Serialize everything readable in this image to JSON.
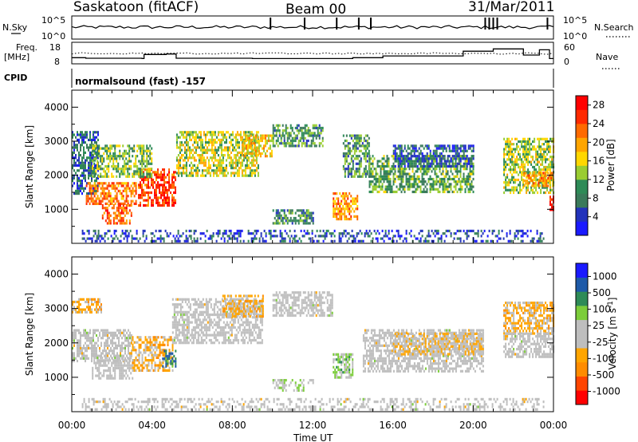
{
  "header": {
    "station": "Saskatoon (fitACF)",
    "beam": "Beam 00",
    "date": "31/Mar/2011"
  },
  "noise_panel": {
    "left_label": "N.Sky",
    "left_ticks": [
      "10^5",
      "10^0"
    ],
    "right_label": "N.Search",
    "right_ticks": [
      "10^5",
      "10^0"
    ]
  },
  "freq_panel": {
    "left_label_line1": "Freq.",
    "left_label_line2": "[MHz]",
    "left_ticks": [
      "18",
      "8"
    ],
    "right_label": "Nave",
    "right_ticks": [
      "60",
      "0"
    ]
  },
  "cpid_panel": {
    "label": "CPID",
    "text": "normalsound (fast) -157"
  },
  "time_axis": {
    "label": "Time UT",
    "ticks": [
      "00:00",
      "04:00",
      "08:00",
      "12:00",
      "16:00",
      "20:00",
      "00:00"
    ]
  },
  "colors": {
    "power_scale": [
      "#1a1aff",
      "#2233bb",
      "#3a7a5a",
      "#2e8b57",
      "#9acd32",
      "#ffd700",
      "#ffa500",
      "#ff6a00",
      "#ff2a00",
      "#ff0000"
    ],
    "velocity_scale": [
      "#ff0000",
      "#ff4500",
      "#ff8c00",
      "#ffa500",
      "#bebebe",
      "#bebebe",
      "#7ccd3a",
      "#2e8b57",
      "#1e5aa8",
      "#1a1aff"
    ]
  },
  "chart_data": [
    {
      "type": "heatmap",
      "title": "",
      "xlabel": "",
      "ylabel": "Slant Range [km]",
      "xlim": [
        0,
        24
      ],
      "ylim": [
        0,
        4500
      ],
      "y_ticks": [
        "1000",
        "2000",
        "3000",
        "4000"
      ],
      "colorbar": {
        "label": "Power [dB]",
        "ticks": [
          "4",
          "8",
          "12",
          "16",
          "20",
          "24",
          "28"
        ],
        "range": [
          0,
          30
        ]
      },
      "regions": [
        {
          "t0": 0.0,
          "t1": 1.3,
          "r0": 1500,
          "r1": 3300,
          "level": 7
        },
        {
          "t0": 0.7,
          "t1": 3.2,
          "r0": 1150,
          "r1": 1800,
          "level": 22
        },
        {
          "t0": 1.5,
          "t1": 3.0,
          "r0": 600,
          "r1": 1150,
          "level": 23
        },
        {
          "t0": 3.3,
          "t1": 5.2,
          "r0": 1100,
          "r1": 2200,
          "level": 25
        },
        {
          "t0": 1.0,
          "t1": 4.0,
          "r0": 2000,
          "r1": 2900,
          "level": 12
        },
        {
          "t0": 5.2,
          "t1": 9.3,
          "r0": 2000,
          "r1": 3300,
          "level": 15
        },
        {
          "t0": 8.5,
          "t1": 10.0,
          "r0": 2600,
          "r1": 3200,
          "level": 17
        },
        {
          "t0": 10.0,
          "t1": 12.5,
          "r0": 2900,
          "r1": 3500,
          "level": 10
        },
        {
          "t0": 10.0,
          "t1": 12.0,
          "r0": 600,
          "r1": 1000,
          "level": 9
        },
        {
          "t0": 13.0,
          "t1": 14.2,
          "r0": 700,
          "r1": 1500,
          "level": 20
        },
        {
          "t0": 13.5,
          "t1": 14.8,
          "r0": 2000,
          "r1": 3200,
          "level": 10
        },
        {
          "t0": 14.8,
          "t1": 20.0,
          "r0": 1500,
          "r1": 2600,
          "level": 11
        },
        {
          "t0": 16.0,
          "t1": 20.0,
          "r0": 2300,
          "r1": 2900,
          "level": 6
        },
        {
          "t0": 21.5,
          "t1": 24.0,
          "r0": 1500,
          "r1": 3100,
          "level": 14
        },
        {
          "t0": 22.5,
          "t1": 24.0,
          "r0": 1700,
          "r1": 2100,
          "level": 21
        },
        {
          "t0": 23.8,
          "t1": 24.0,
          "r0": 1000,
          "r1": 1400,
          "level": 28
        },
        {
          "t0": 0.5,
          "t1": 23.5,
          "r0": 100,
          "r1": 400,
          "level": 5
        }
      ]
    },
    {
      "type": "heatmap",
      "title": "",
      "xlabel": "Time UT",
      "ylabel": "Slant Range [km]",
      "xlim": [
        0,
        24
      ],
      "ylim": [
        0,
        4500
      ],
      "y_ticks": [
        "1000",
        "2000",
        "3000",
        "4000"
      ],
      "colorbar": {
        "label": "Velocity [m s^-1]",
        "ticks": [
          "1000",
          "500",
          "100",
          "25",
          "-25",
          "-100",
          "-500",
          "-1000"
        ],
        "range": [
          -1200,
          1200
        ]
      },
      "regions": [
        {
          "t0": 0.0,
          "t1": 1.5,
          "r0": 2900,
          "r1": 3300,
          "level": -300
        },
        {
          "t0": 0.0,
          "t1": 3.0,
          "r0": 1500,
          "r1": 2400,
          "level": 0
        },
        {
          "t0": 1.0,
          "t1": 3.0,
          "r0": 1000,
          "r1": 1600,
          "level": 0
        },
        {
          "t0": 3.0,
          "t1": 5.0,
          "r0": 1200,
          "r1": 2200,
          "level": -300
        },
        {
          "t0": 4.5,
          "t1": 5.2,
          "r0": 1300,
          "r1": 1800,
          "level": 700
        },
        {
          "t0": 5.0,
          "t1": 9.5,
          "r0": 2000,
          "r1": 3300,
          "level": 0
        },
        {
          "t0": 7.5,
          "t1": 9.5,
          "r0": 2800,
          "r1": 3400,
          "level": -300
        },
        {
          "t0": 10.0,
          "t1": 13.0,
          "r0": 2800,
          "r1": 3500,
          "level": 0
        },
        {
          "t0": 10.0,
          "t1": 12.0,
          "r0": 650,
          "r1": 950,
          "level": 150
        },
        {
          "t0": 13.0,
          "t1": 14.0,
          "r0": 1000,
          "r1": 1700,
          "level": 300
        },
        {
          "t0": 14.5,
          "t1": 20.5,
          "r0": 1200,
          "r1": 2400,
          "level": 0
        },
        {
          "t0": 16.0,
          "t1": 20.5,
          "r0": 1700,
          "r1": 2300,
          "level": -200
        },
        {
          "t0": 21.5,
          "t1": 24.0,
          "r0": 2300,
          "r1": 3200,
          "level": -300
        },
        {
          "t0": 21.5,
          "t1": 24.0,
          "r0": 1600,
          "r1": 2300,
          "level": 0
        },
        {
          "t0": 0.5,
          "t1": 23.5,
          "r0": 100,
          "r1": 400,
          "level": 0
        }
      ]
    }
  ]
}
